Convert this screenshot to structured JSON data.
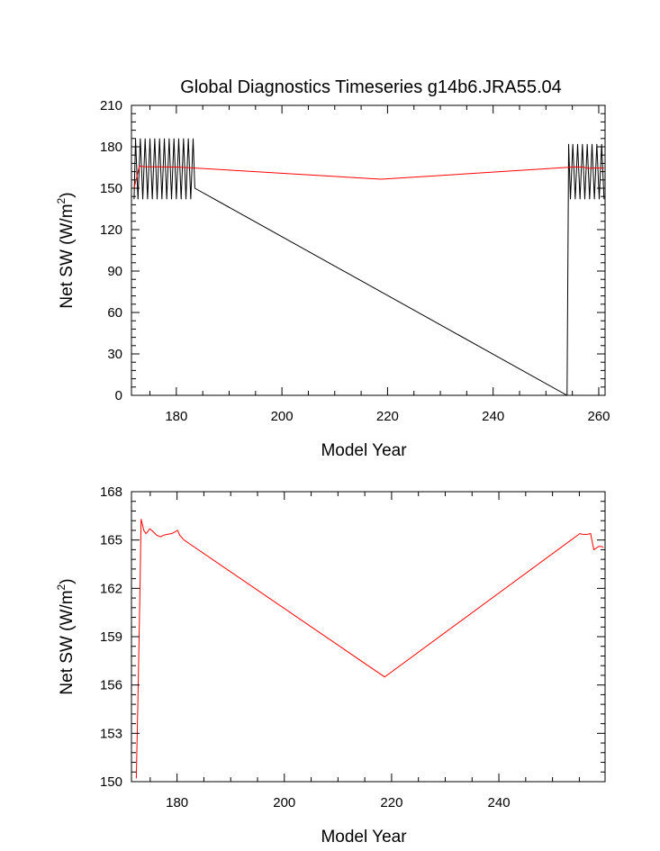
{
  "chart_data": [
    {
      "type": "line",
      "title": "Global Diagnostics Timeseries g14b6.JRA55.04",
      "xlabel": "Model Year",
      "ylabel": "Net SW (W/m",
      "ylabel_sup": "2",
      "ylabel_close": ")",
      "xlim": [
        171.5,
        261.2
      ],
      "ylim": [
        0,
        210
      ],
      "xticks": [
        180,
        200,
        220,
        240,
        260
      ],
      "yticks": [
        0,
        30,
        60,
        90,
        120,
        150,
        180,
        210
      ],
      "grid": false,
      "series": [
        {
          "color": "#000000",
          "x": [
            172.0,
            172.27,
            172.73,
            173.18,
            173.64,
            174.09,
            174.55,
            175.0,
            175.45,
            175.91,
            176.36,
            176.82,
            177.27,
            177.73,
            178.18,
            178.64,
            179.09,
            179.55,
            180.0,
            180.45,
            180.91,
            181.36,
            181.82,
            182.27,
            182.73,
            183.18,
            183.5,
            254.0,
            254.3,
            254.64,
            255.09,
            255.55,
            256.0,
            256.45,
            256.91,
            257.36,
            257.82,
            258.27,
            258.73,
            259.18,
            259.64,
            260.09,
            260.55,
            261.0
          ],
          "y": [
            142,
            186,
            142,
            186,
            142,
            186,
            142,
            186,
            142,
            186,
            142,
            186,
            142,
            186,
            142,
            186,
            142,
            186,
            142,
            186,
            142,
            186,
            142,
            186,
            142,
            186,
            150,
            0,
            182,
            142,
            182,
            142,
            182,
            142,
            182,
            142,
            182,
            142,
            182,
            142,
            182,
            142,
            182,
            142
          ]
        },
        {
          "color": "#ff0000",
          "x": [
            172.0,
            173.0,
            174.0,
            180.0,
            181.0,
            218.8,
            255.5,
            256.5,
            257.0,
            258.0,
            259.0,
            261.0
          ],
          "y": [
            150,
            166,
            165.6,
            165.3,
            165.2,
            156.5,
            165.4,
            165.3,
            165.4,
            164.4,
            164.6,
            164.6
          ]
        }
      ]
    },
    {
      "type": "line",
      "title": "",
      "xlabel": "Model Year",
      "ylabel": "Net SW (W/m",
      "ylabel_sup": "2",
      "ylabel_close": ")",
      "xlim": [
        171.5,
        259.8
      ],
      "ylim": [
        150,
        168
      ],
      "xticks": [
        180,
        200,
        220,
        240
      ],
      "yticks": [
        150,
        153,
        156,
        159,
        162,
        165,
        168
      ],
      "grid": false,
      "series": [
        {
          "color": "#ff0000",
          "x": [
            172.4,
            172.7,
            173.1,
            173.3,
            173.8,
            174.2,
            174.5,
            174.9,
            175.6,
            176.2,
            176.9,
            177.5,
            178.2,
            179.0,
            179.6,
            180.1,
            180.5,
            181.3,
            218.7,
            255.1,
            255.6,
            256.5,
            257.1,
            257.7,
            258.6,
            259.1,
            259.5
          ],
          "y": [
            150.2,
            155.0,
            162.1,
            166.3,
            165.6,
            165.4,
            165.5,
            165.7,
            165.5,
            165.3,
            165.2,
            165.3,
            165.35,
            165.4,
            165.5,
            165.6,
            165.3,
            165.0,
            156.5,
            165.4,
            165.35,
            165.35,
            165.4,
            164.4,
            164.6,
            164.6,
            164.55
          ]
        }
      ]
    }
  ]
}
